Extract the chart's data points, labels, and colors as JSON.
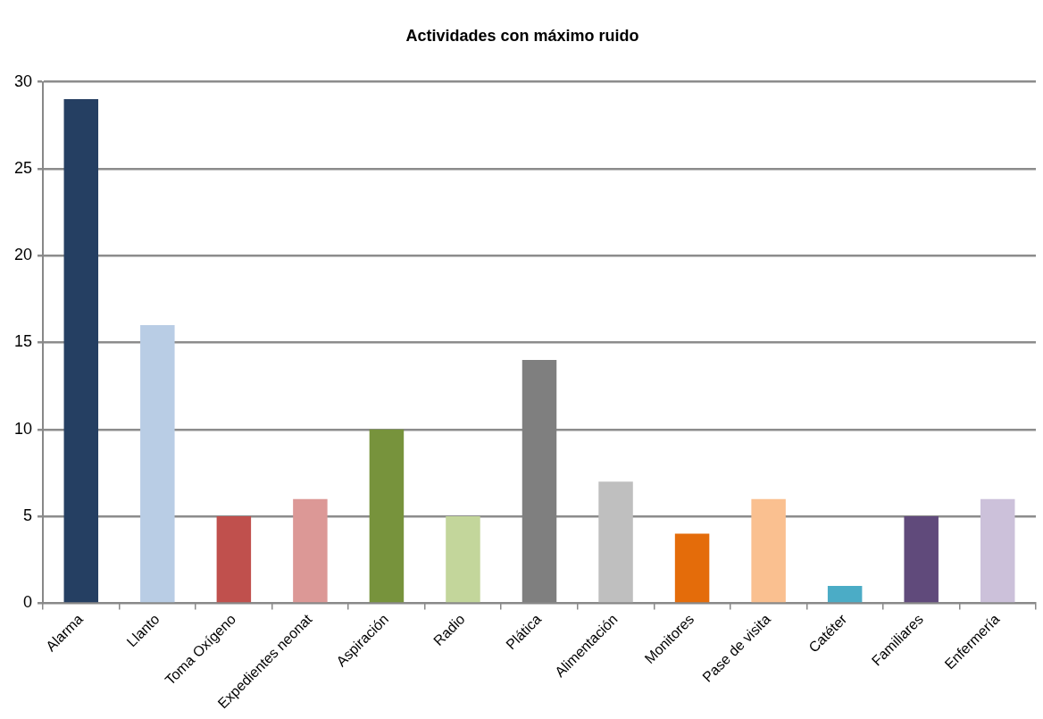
{
  "chart_data": {
    "type": "bar",
    "title": "Actividades con máximo ruido",
    "categories": [
      "Alarma",
      "Llanto",
      "Toma Oxígeno",
      "Expedientes neonat",
      "Aspiración",
      "Radio",
      "Plática",
      "Alimentación",
      "Monitores",
      "Pase de visita",
      "Catéter",
      "Familiares",
      "Enfermería"
    ],
    "values": [
      29,
      16,
      5,
      6,
      10,
      5,
      14,
      7,
      4,
      6,
      1,
      5,
      6
    ],
    "colors": [
      "#253f62",
      "#b9cde5",
      "#c0504d",
      "#dc9896",
      "#77933c",
      "#c3d69b",
      "#7f7f7f",
      "#bfbfbf",
      "#e46c0a",
      "#fac090",
      "#4bacc6",
      "#604a7b",
      "#ccc1da"
    ],
    "ylim": [
      0,
      30
    ],
    "yticks": [
      0,
      5,
      10,
      15,
      20,
      25,
      30
    ],
    "grid": "y"
  }
}
